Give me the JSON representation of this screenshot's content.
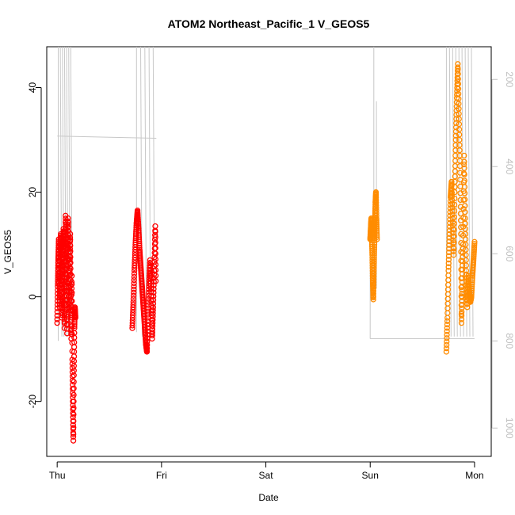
{
  "chart_data": {
    "type": "scatter",
    "title": "ATOM2 Northeast_Pacific_1 V_GEOS5",
    "xlabel": "Date",
    "ylabel": "V_GEOS5",
    "x_tick_labels": [
      "Thu",
      "Fri",
      "Sat",
      "Sun",
      "Mon"
    ],
    "x_tick_days": [
      0,
      1,
      2,
      3,
      4
    ],
    "xlim_days": [
      -0.1,
      4.16
    ],
    "ylim": [
      -30.5,
      47.8
    ],
    "y_ticks": [
      -20,
      0,
      20,
      40
    ],
    "y_tick_labels": [
      "-20",
      "0",
      "20",
      "40"
    ],
    "right_axis": {
      "ticks": [
        200,
        400,
        600,
        800,
        1000
      ],
      "tick_labels": [
        "200",
        "400",
        "600",
        "800",
        "1000"
      ],
      "lim_top_to_bottom": [
        125,
        1065
      ],
      "color": "#c0c0c0"
    },
    "colors": {
      "series1": "#ff0000",
      "series2": "#ff8c00",
      "gray_line": "#c8c8c8"
    },
    "series": [
      {
        "color": "#ff0000",
        "points": [
          [
            0.0,
            -5
          ],
          [
            0.005,
            2
          ],
          [
            0.01,
            7
          ],
          [
            0.015,
            11
          ],
          [
            0.02,
            4
          ],
          [
            0.025,
            -2
          ],
          [
            0.03,
            9
          ],
          [
            0.035,
            12
          ],
          [
            0.04,
            5
          ],
          [
            0.045,
            -4
          ],
          [
            0.05,
            1
          ],
          [
            0.055,
            8
          ],
          [
            0.06,
            13
          ],
          [
            0.065,
            6
          ],
          [
            0.07,
            -6
          ],
          [
            0.075,
            3
          ],
          [
            0.08,
            15.5
          ],
          [
            0.085,
            10
          ],
          [
            0.09,
            2
          ],
          [
            0.095,
            -7
          ],
          [
            0.1,
            9
          ],
          [
            0.105,
            15
          ],
          [
            0.11,
            7
          ],
          [
            0.115,
            -3
          ],
          [
            0.12,
            5
          ],
          [
            0.125,
            12
          ],
          [
            0.13,
            1
          ],
          [
            0.135,
            -8
          ],
          [
            0.14,
            4
          ],
          [
            0.145,
            -12
          ],
          [
            0.15,
            -20
          ],
          [
            0.155,
            -27.5
          ],
          [
            0.16,
            -15
          ],
          [
            0.165,
            -6
          ],
          [
            0.17,
            -2
          ],
          [
            0.175,
            -4
          ],
          [
            0.72,
            -6
          ],
          [
            0.73,
            -1
          ],
          [
            0.74,
            5
          ],
          [
            0.75,
            10
          ],
          [
            0.76,
            14
          ],
          [
            0.77,
            16.5
          ],
          [
            0.78,
            13
          ],
          [
            0.79,
            9
          ],
          [
            0.8,
            6
          ],
          [
            0.81,
            3
          ],
          [
            0.82,
            0
          ],
          [
            0.83,
            -3
          ],
          [
            0.84,
            -6
          ],
          [
            0.85,
            -9
          ],
          [
            0.86,
            -10.5
          ],
          [
            0.87,
            -4
          ],
          [
            0.88,
            2
          ],
          [
            0.89,
            7
          ],
          [
            0.9,
            1
          ],
          [
            0.91,
            -8
          ],
          [
            0.92,
            -2
          ],
          [
            0.93,
            5
          ],
          [
            0.94,
            13.5
          ],
          [
            0.945,
            3
          ]
        ]
      },
      {
        "color": "#ff8c00",
        "points": [
          [
            3.0,
            11
          ],
          [
            3.005,
            13
          ],
          [
            3.01,
            15
          ],
          [
            3.015,
            12
          ],
          [
            3.02,
            8
          ],
          [
            3.025,
            3
          ],
          [
            3.03,
            -0.5
          ],
          [
            3.035,
            5
          ],
          [
            3.04,
            10
          ],
          [
            3.045,
            14
          ],
          [
            3.05,
            18
          ],
          [
            3.055,
            20
          ],
          [
            3.06,
            15
          ],
          [
            3.065,
            11
          ],
          [
            3.73,
            -10.5
          ],
          [
            3.74,
            -4
          ],
          [
            3.75,
            5
          ],
          [
            3.76,
            12
          ],
          [
            3.77,
            19
          ],
          [
            3.78,
            22
          ],
          [
            3.79,
            15
          ],
          [
            3.8,
            8
          ],
          [
            3.81,
            20
          ],
          [
            3.82,
            30
          ],
          [
            3.83,
            38
          ],
          [
            3.84,
            44.5
          ],
          [
            3.85,
            35
          ],
          [
            3.86,
            25
          ],
          [
            3.87,
            12
          ],
          [
            3.875,
            -5
          ],
          [
            3.88,
            2
          ],
          [
            3.89,
            10
          ],
          [
            3.9,
            27
          ],
          [
            3.91,
            15
          ],
          [
            3.92,
            5
          ],
          [
            3.93,
            -2
          ],
          [
            3.94,
            4
          ],
          [
            3.95,
            1
          ],
          [
            3.96,
            -1
          ],
          [
            3.97,
            0
          ],
          [
            3.98,
            4
          ],
          [
            3.99,
            7
          ],
          [
            4.0,
            10.5
          ]
        ]
      }
    ]
  }
}
